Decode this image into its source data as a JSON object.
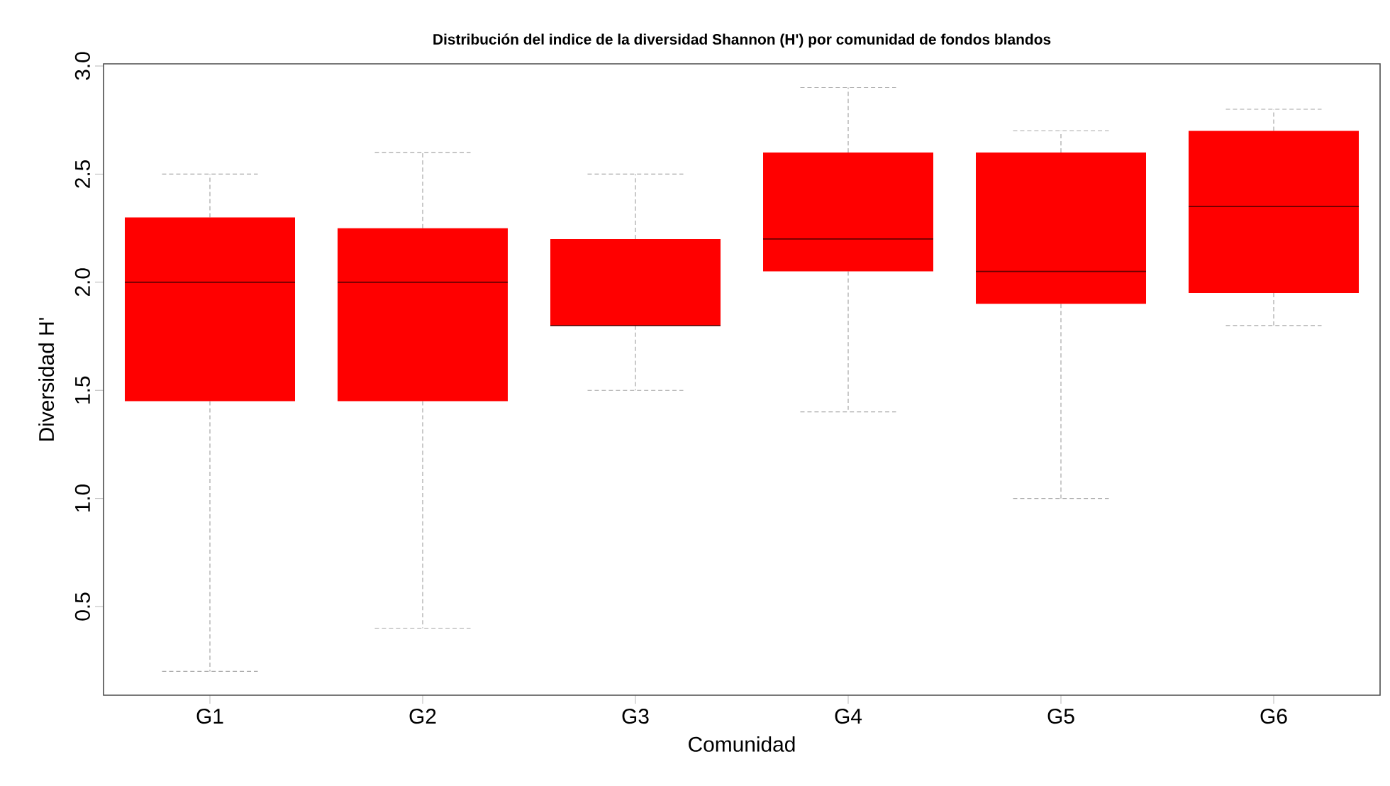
{
  "chart_data": {
    "type": "box",
    "title": "Distribución del indice de la diversidad Shannon (H')  por comunidad de fondos blandos",
    "xlabel": "Comunidad",
    "ylabel": "Diversidad H'",
    "categories": [
      "G1",
      "G2",
      "G3",
      "G4",
      "G5",
      "G6"
    ],
    "color": "#ff0000",
    "boxes": [
      {
        "low": 0.2,
        "q1": 1.45,
        "median": 2.0,
        "q3": 2.3,
        "high": 2.5
      },
      {
        "low": 0.4,
        "q1": 1.45,
        "median": 2.0,
        "q3": 2.25,
        "high": 2.6
      },
      {
        "low": 1.5,
        "q1": 1.8,
        "median": 1.8,
        "q3": 2.2,
        "high": 2.5
      },
      {
        "low": 1.4,
        "q1": 2.05,
        "median": 2.2,
        "q3": 2.6,
        "high": 2.9
      },
      {
        "low": 1.0,
        "q1": 1.9,
        "median": 2.05,
        "q3": 2.6,
        "high": 2.7
      },
      {
        "low": 1.8,
        "q1": 1.95,
        "median": 2.35,
        "q3": 2.7,
        "high": 2.8
      }
    ],
    "ylim": [
      0.09,
      3.01
    ],
    "yticks": [
      0.5,
      {
        "value": 1,
        "label": "1.0"
      },
      1.5,
      {
        "value": 2,
        "label": "2.0"
      },
      2.5,
      {
        "value": 3,
        "label": "3.0"
      }
    ]
  }
}
